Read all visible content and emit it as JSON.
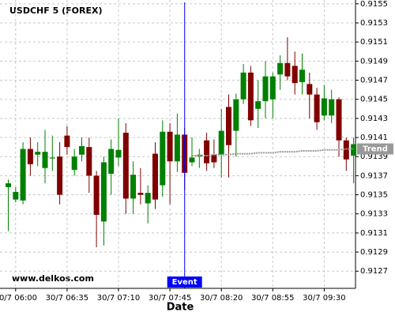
{
  "chart_data": {
    "type": "candlestick",
    "title": "USDCHF 5 (FOREX)",
    "watermark": "www.delkos.com",
    "xlabel": "Date",
    "categories": [
      null,
      "30/7 06:00",
      null,
      null,
      null,
      null,
      null,
      null,
      "30/7 06:35",
      null,
      null,
      null,
      null,
      null,
      null,
      "30/7 07:10",
      null,
      null,
      null,
      null,
      null,
      null,
      "30/7 07:45",
      null,
      null,
      null,
      null,
      null,
      null,
      "30/7 08:20",
      null,
      null,
      null,
      null,
      null,
      null,
      "30/7 08:55",
      null,
      null,
      null,
      null,
      null,
      null,
      "30/7 09:30",
      null,
      null,
      null,
      null
    ],
    "open": [
      0.91358,
      0.91345,
      0.91344,
      0.91398,
      0.91392,
      0.91378,
      0.91388,
      0.9139,
      0.91412,
      0.91376,
      0.91392,
      0.914,
      0.9137,
      0.91322,
      0.91372,
      0.91389,
      0.91415,
      0.91346,
      0.91352,
      0.91341,
      0.91393,
      0.9136,
      0.91416,
      0.91385,
      0.91413,
      0.91384,
      0.9139,
      0.91407,
      0.91392,
      0.91392,
      0.91442,
      0.91417,
      0.9145,
      0.91478,
      0.9144,
      0.91448,
      0.9145,
      0.91476,
      0.91488,
      0.91485,
      0.91468,
      0.91466,
      0.91455,
      0.91433,
      0.91433,
      0.9145,
      0.91407,
      0.91391
    ],
    "high": [
      0.91366,
      0.91358,
      0.91405,
      0.9141,
      0.91405,
      0.91418,
      0.91412,
      0.91405,
      0.91422,
      0.91398,
      0.9141,
      0.9141,
      0.91375,
      0.9139,
      0.91408,
      0.9143,
      0.91425,
      0.91385,
      0.91378,
      0.9136,
      0.91405,
      0.91428,
      0.91425,
      0.91435,
      0.9142,
      0.9141,
      0.91398,
      0.91415,
      0.91408,
      0.9144,
      0.91455,
      0.91456,
      0.91487,
      0.91485,
      0.9147,
      0.9149,
      0.91478,
      0.91496,
      0.91515,
      0.915,
      0.91498,
      0.91478,
      0.91462,
      0.91465,
      0.9146,
      0.91452,
      0.9141,
      0.9141
    ],
    "low": [
      0.91312,
      0.91342,
      0.9134,
      0.9137,
      0.9138,
      0.91362,
      0.91375,
      0.9134,
      0.91392,
      0.9137,
      0.91385,
      0.91352,
      0.91295,
      0.91297,
      0.9135,
      0.9138,
      0.9133,
      0.9133,
      0.9134,
      0.9132,
      0.91335,
      0.91348,
      0.9134,
      0.91374,
      0.91355,
      0.9138,
      0.91378,
      0.91375,
      0.91378,
      0.91368,
      0.91368,
      0.9139,
      0.91445,
      0.91422,
      0.9142,
      0.9143,
      0.9143,
      0.9146,
      0.9147,
      0.91455,
      0.91455,
      0.9143,
      0.91418,
      0.91428,
      0.91425,
      0.9139,
      0.91375,
      0.91362
    ],
    "close": [
      0.91362,
      0.91353,
      0.91398,
      0.91382,
      0.91395,
      0.91395,
      0.91389,
      0.9135,
      0.914,
      0.9139,
      0.91401,
      0.9137,
      0.91329,
      0.91384,
      0.91398,
      0.91397,
      0.91346,
      0.91371,
      0.9135,
      0.91352,
      0.91345,
      0.91416,
      0.91385,
      0.91413,
      0.91373,
      0.91389,
      0.91392,
      0.91383,
      0.91384,
      0.91417,
      0.91402,
      0.9145,
      0.91478,
      0.91428,
      0.91448,
      0.91474,
      0.91474,
      0.91488,
      0.91474,
      0.91467,
      0.91481,
      0.91455,
      0.91426,
      0.91451,
      0.9145,
      0.91407,
      0.91387,
      0.91403
    ],
    "up_color": "#008000",
    "down_color": "#800000",
    "trend": {
      "label": "Trend",
      "color": "#999999",
      "values": [
        null,
        null,
        null,
        null,
        null,
        null,
        null,
        null,
        null,
        null,
        null,
        null,
        null,
        null,
        null,
        null,
        null,
        null,
        null,
        null,
        null,
        null,
        null,
        null,
        null,
        0.91391,
        0.91391,
        0.91391,
        0.91392,
        0.91392,
        0.91392,
        0.91393,
        0.91393,
        0.91393,
        0.91394,
        0.91394,
        0.91394,
        0.91395,
        0.91395,
        0.91395,
        0.91396,
        0.91396,
        0.91396,
        0.91397,
        0.91397,
        0.91397,
        0.91398,
        0.91398
      ]
    },
    "event": {
      "label": "Event",
      "index": 24,
      "color": "#0000ff"
    },
    "ylim": [
      0.91252,
      0.91554
    ],
    "yticks": [
      0.9127,
      0.9129,
      0.9131,
      0.9133,
      0.9135,
      0.9137,
      0.9139,
      0.9141,
      0.9143,
      0.9145,
      0.9147,
      0.9149,
      0.9151,
      0.9153,
      0.9155
    ],
    "grid": true
  }
}
